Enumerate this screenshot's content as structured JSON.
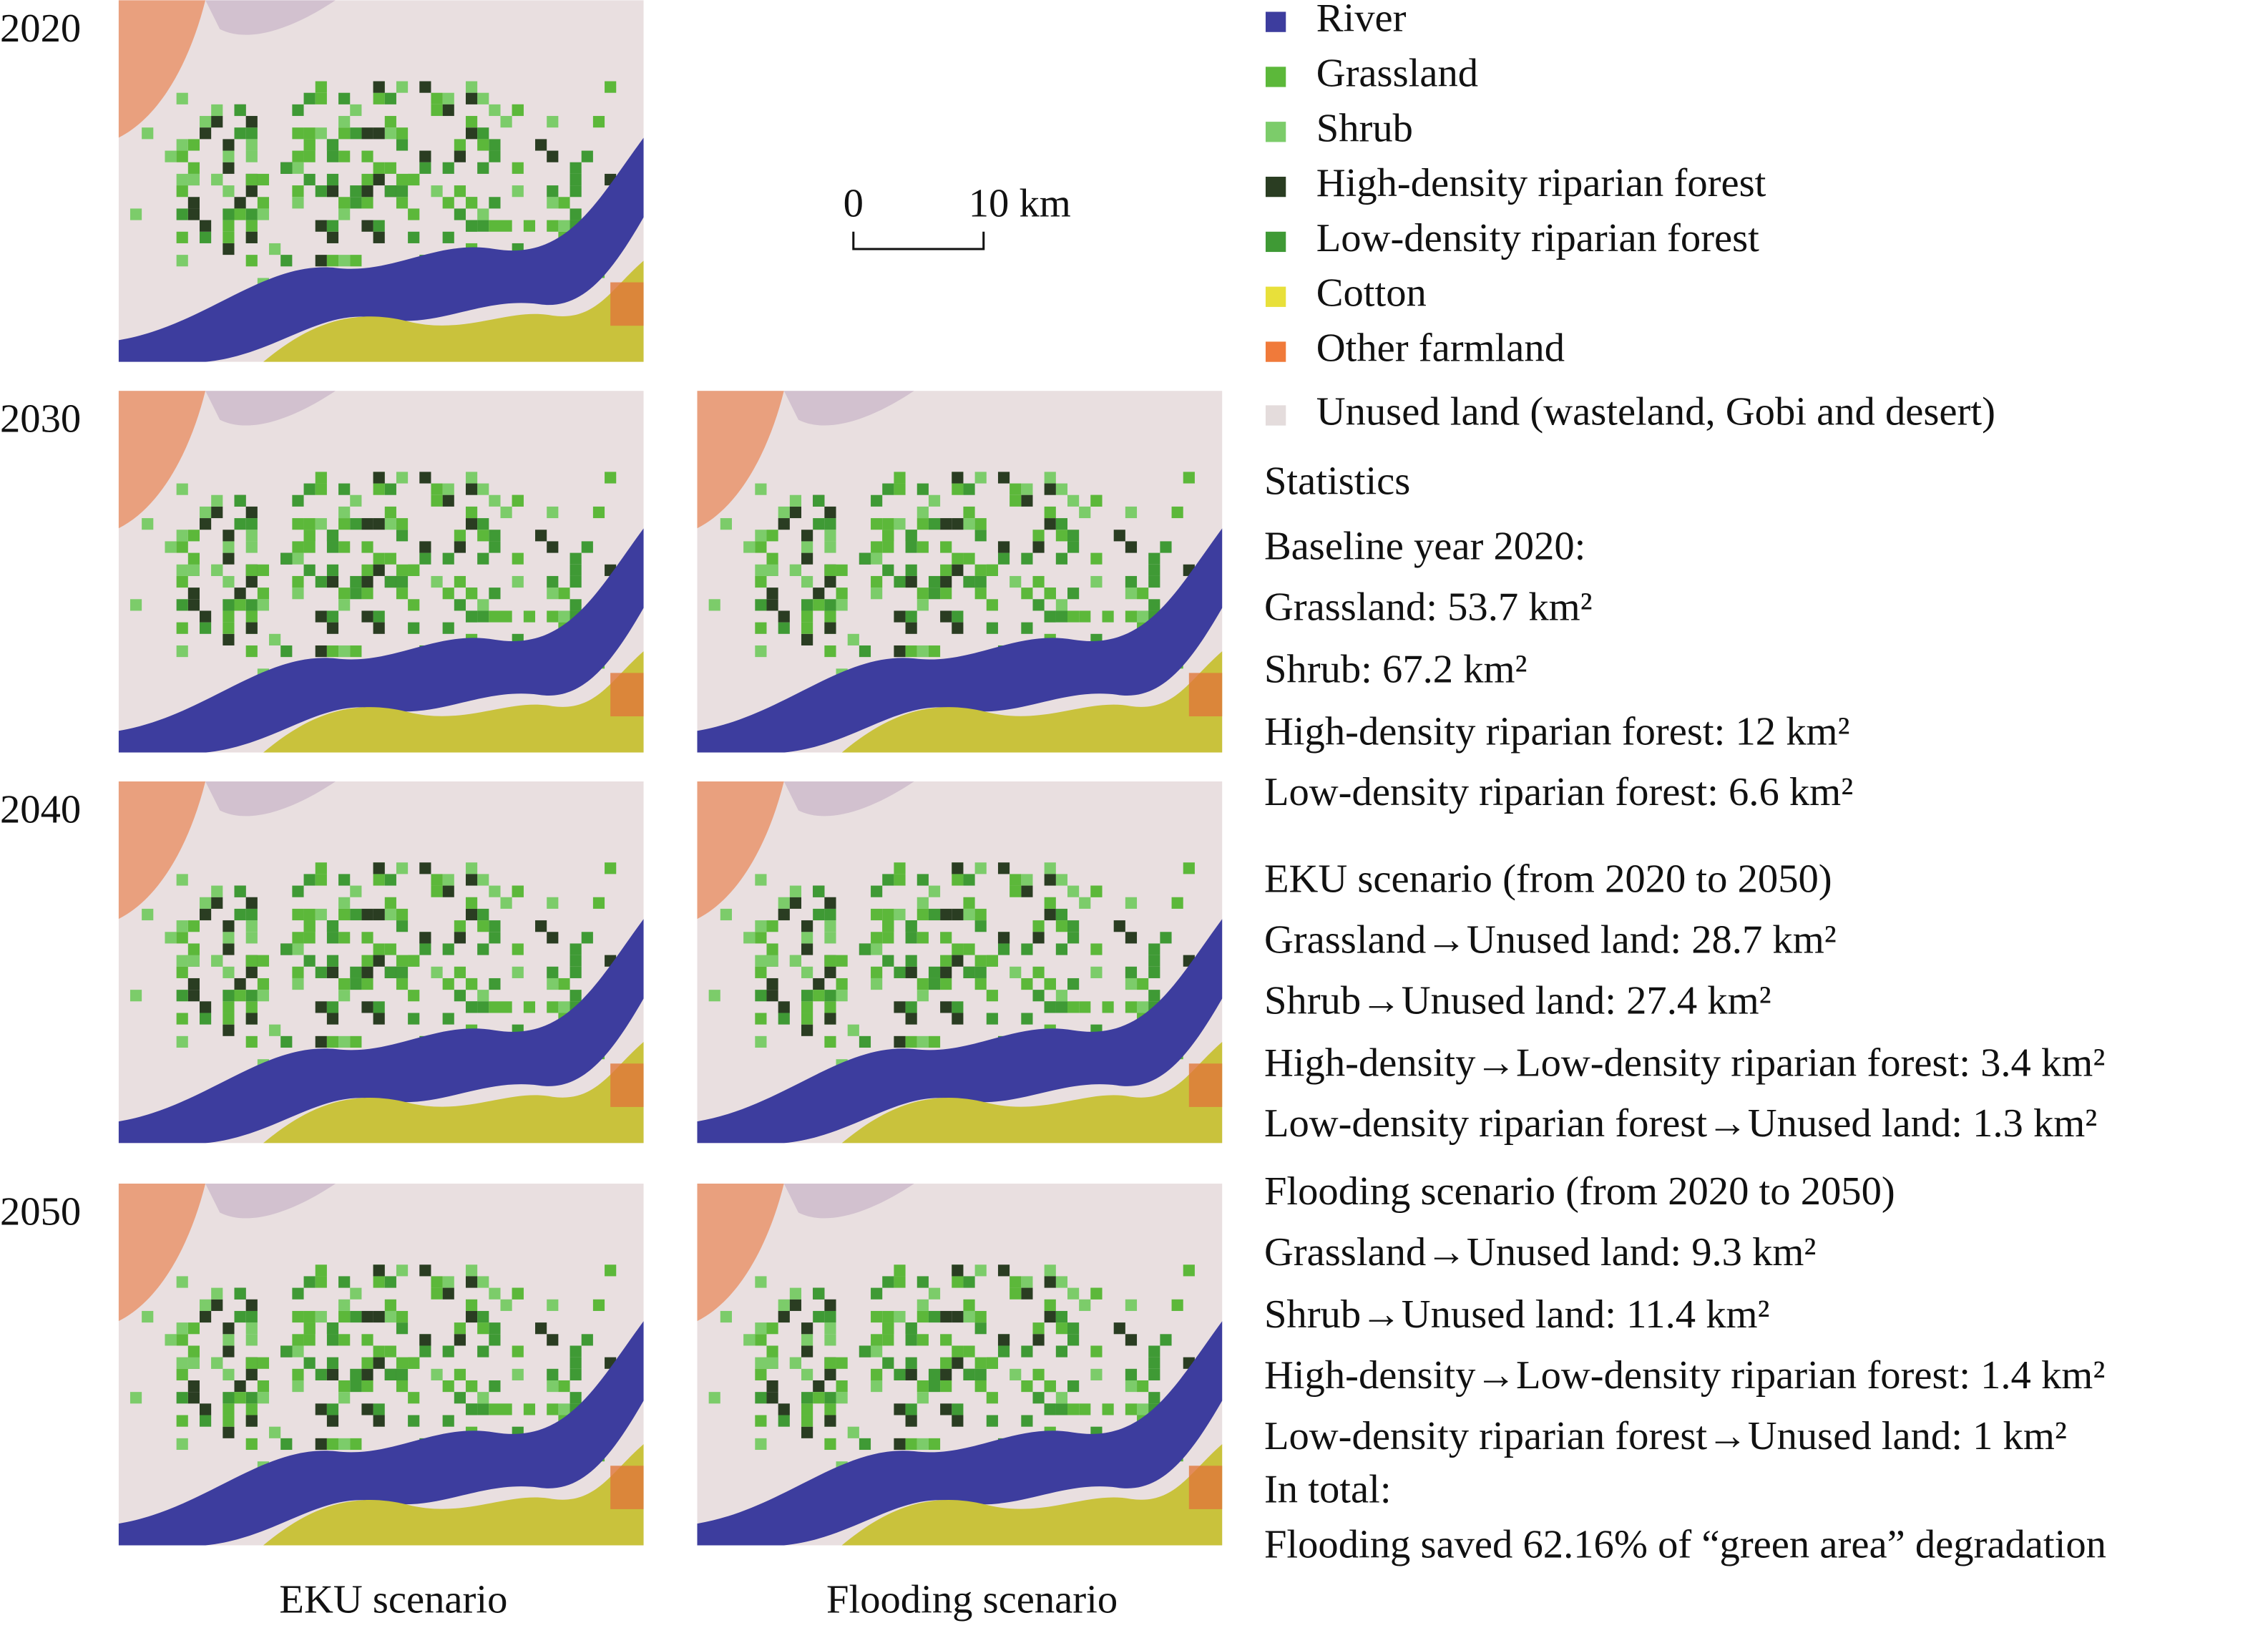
{
  "years": [
    "2020",
    "2030",
    "2040",
    "2050"
  ],
  "columns": [
    "EKU scenario",
    "Flooding scenario"
  ],
  "scale_bar": {
    "start": "0",
    "end": "10 km"
  },
  "legend": [
    {
      "label": "River",
      "color": "#3d3d9e"
    },
    {
      "label": "Grassland",
      "color": "#5cb83a"
    },
    {
      "label": "Shrub",
      "color": "#7ccc6a"
    },
    {
      "label": "High-density riparian forest",
      "color": "#2a3d22"
    },
    {
      "label": "Low-density riparian forest",
      "color": "#3f9a35"
    },
    {
      "label": "Cotton",
      "color": "#e8e03a"
    },
    {
      "label": "Other farmland",
      "color": "#f07a3a"
    },
    {
      "label": "Unused land (wasteland, Gobi and desert)",
      "color": "#e4dcdc"
    }
  ],
  "statistics": {
    "title": "Statistics",
    "sections": [
      {
        "heading": "Baseline year 2020:",
        "items": [
          "Grassland: 53.7 km²",
          "Shrub: 67.2 km²",
          "High-density riparian forest: 12 km²",
          "Low-density riparian forest: 6.6 km²"
        ]
      },
      {
        "heading": "EKU scenario (from 2020 to 2050)",
        "items": [
          "Grassland→Unused land: 28.7 km²",
          "Shrub→Unused land: 27.4 km²",
          "High-density→Low-density riparian forest: 3.4 km²",
          "Low-density riparian forest→Unused land: 1.3 km²"
        ]
      },
      {
        "heading": "Flooding scenario (from 2020 to 2050)",
        "items": [
          "Grassland→Unused land: 9.3 km²",
          "Shrub→Unused land: 11.4 km²",
          "High-density→Low-density riparian forest: 1.4 km²",
          "Low-density riparian forest→Unused land: 1 km²"
        ]
      }
    ],
    "total": {
      "heading": "In total:",
      "text": "Flooding saved 62.16% of “green area” degradation"
    }
  }
}
